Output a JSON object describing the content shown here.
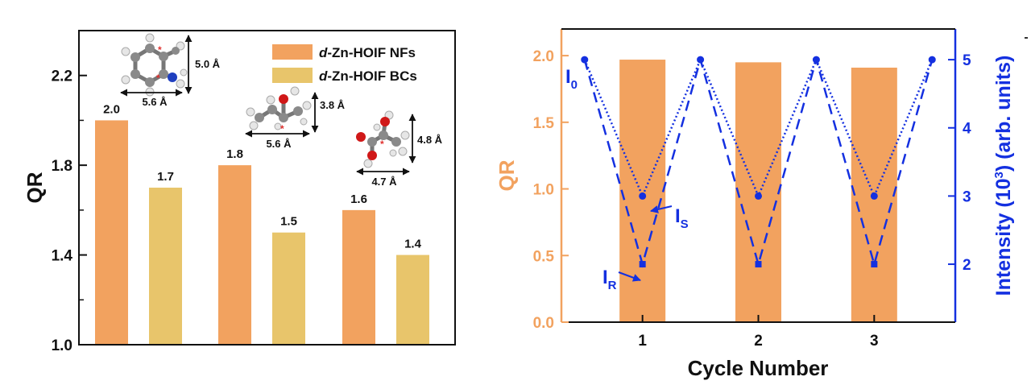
{
  "colors": {
    "nf": "#f2a25f",
    "bc": "#e8c56b",
    "blue": "#1430e0",
    "qr_axis": "#f2a25f",
    "atom_c": "#8a8a8a",
    "atom_h": "#e6e6e6",
    "atom_n": "#1f3fbf",
    "atom_o": "#d01818",
    "star": "#e0302e"
  },
  "chart_data": [
    {
      "type": "bar",
      "ylabel": "QR",
      "ylim": [
        1.0,
        2.4
      ],
      "yticks": [
        "1.0",
        "1.4",
        "1.8",
        "2.2"
      ],
      "legend_position": "top-right",
      "series": [
        {
          "name_italic": "d",
          "name_rest": "-Zn-HOIF NFs",
          "values": [
            2.0,
            1.8,
            1.6
          ],
          "labels": [
            "2.0",
            "1.8",
            "1.6"
          ]
        },
        {
          "name_italic": "d",
          "name_rest": "-Zn-HOIF BCs",
          "values": [
            1.7,
            1.5,
            1.4
          ],
          "labels": [
            "1.7",
            "1.5",
            "1.4"
          ]
        }
      ],
      "molecules": [
        {
          "width_label": "5.6 Å",
          "height_label": "5.0 Å"
        },
        {
          "width_label": "5.6 Å",
          "height_label": "3.8 Å"
        },
        {
          "width_label": "4.7 Å",
          "height_label": "4.8 Å"
        }
      ]
    },
    {
      "type": "bar+line",
      "xlabel": "Cycle Number",
      "ylabel_left": "QR",
      "ylabel_right_prefix": "Intensity (10",
      "ylabel_right_sup": "3",
      "ylabel_right_suffix": ") (arb. units)",
      "xlim": [
        0.3,
        3.7
      ],
      "xticks": [
        "1",
        "2",
        "3"
      ],
      "ylim_left": [
        0.0,
        2.2
      ],
      "yticks_left": [
        "0.0",
        "0.5",
        "1.0",
        "1.5",
        "2.0"
      ],
      "ylim_right": [
        1.15,
        5.45
      ],
      "yticks_right": [
        "2",
        "3",
        "4",
        "5"
      ],
      "bars": {
        "x": [
          1,
          2,
          3
        ],
        "values": [
          1.97,
          1.95,
          1.91
        ]
      },
      "I0": {
        "x": [
          0.5,
          1.5,
          2.5,
          3.5
        ],
        "values": [
          5,
          5,
          5,
          5
        ]
      },
      "IS": {
        "x": [
          1,
          2,
          3
        ],
        "values": [
          3,
          3,
          3
        ]
      },
      "IR": {
        "x": [
          1,
          2,
          3
        ],
        "values": [
          2,
          2,
          2
        ]
      },
      "annotations": {
        "I0": {
          "base": "I",
          "sub": "0"
        },
        "IS": {
          "base": "I",
          "sub": "S"
        },
        "IR": {
          "base": "I",
          "sub": "R"
        }
      }
    }
  ]
}
